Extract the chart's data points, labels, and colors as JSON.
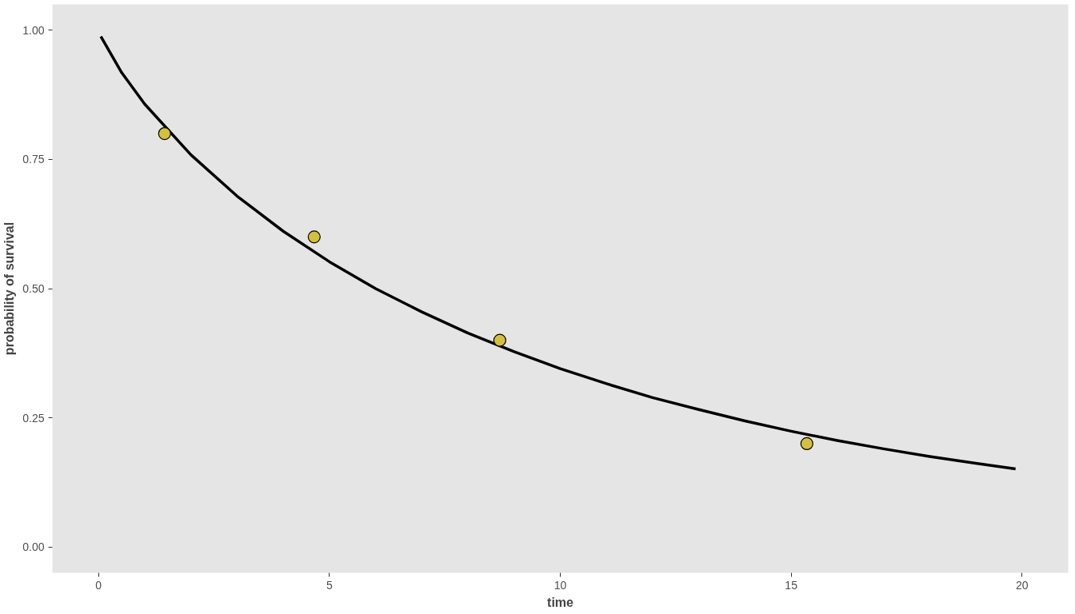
{
  "chart_data": {
    "type": "line",
    "xlabel": "time",
    "ylabel": "probability of survival",
    "xlim": [
      -1,
      21
    ],
    "ylim": [
      -0.05,
      1.05
    ],
    "xticks": [
      0,
      5,
      10,
      15,
      20
    ],
    "yticks": [
      {
        "value": 0,
        "label": "0.00"
      },
      {
        "value": 0.25,
        "label": "0.25"
      },
      {
        "value": 0.5,
        "label": "0.50"
      },
      {
        "value": 0.75,
        "label": "0.75"
      },
      {
        "value": 1,
        "label": "1.00"
      }
    ],
    "grid": false,
    "series": [
      {
        "color": "#000000",
        "line_style": "solid",
        "x": [
          0.05,
          0.5,
          1,
          2,
          3,
          4,
          5,
          6,
          7,
          8,
          9,
          10,
          11,
          12,
          13,
          14,
          15,
          16,
          17,
          18,
          19,
          19.86
        ],
        "values": [
          0.988,
          0.918,
          0.857,
          0.759,
          0.679,
          0.611,
          0.552,
          0.5,
          0.455,
          0.414,
          0.378,
          0.345,
          0.316,
          0.289,
          0.266,
          0.244,
          0.224,
          0.206,
          0.19,
          0.175,
          0.162,
          0.151
        ]
      },
      {
        "type": "scatter",
        "marker": "circle",
        "color": "#d4c03a",
        "x": [
          1.43,
          4.67,
          8.69,
          15.34
        ],
        "values": [
          0.8,
          0.6,
          0.4,
          0.2
        ]
      }
    ]
  }
}
